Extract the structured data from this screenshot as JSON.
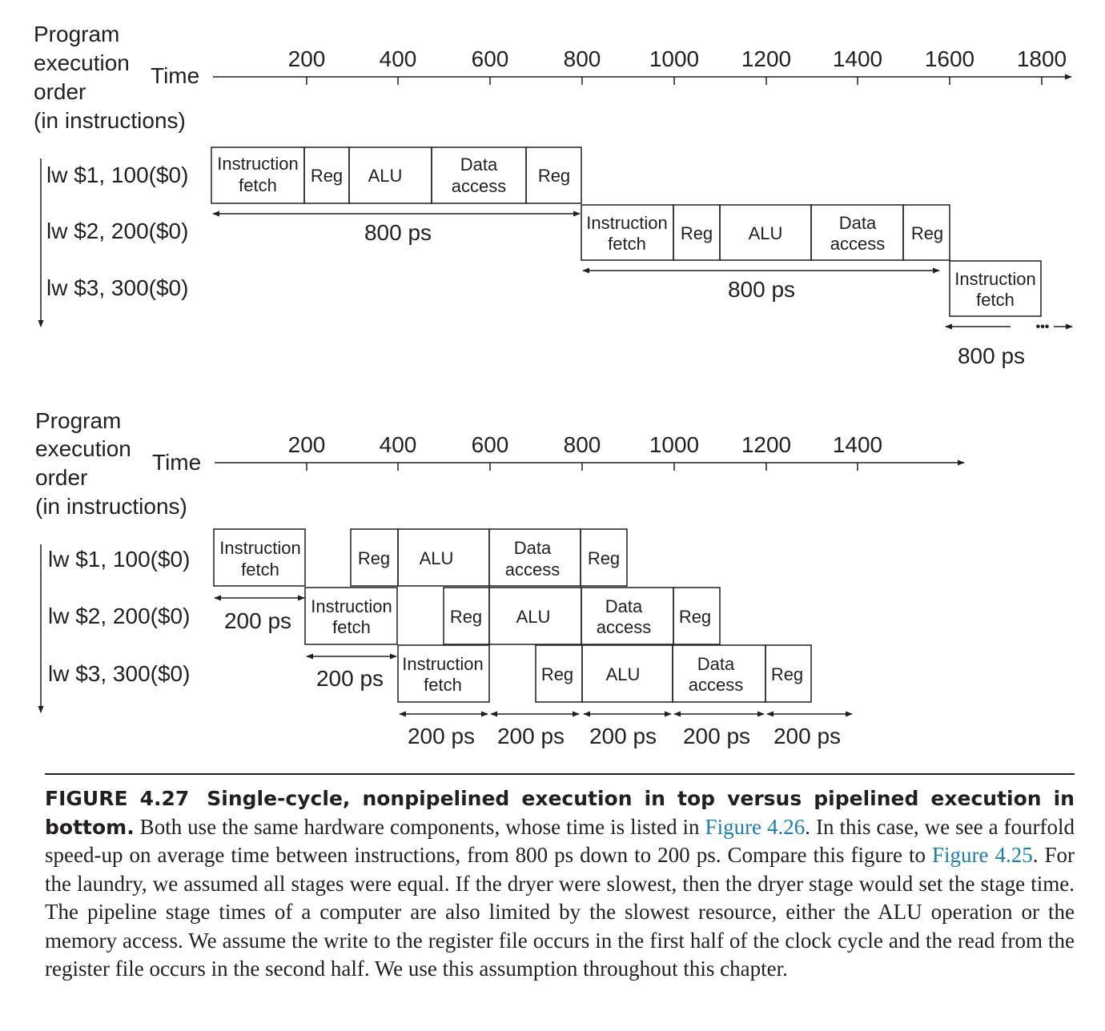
{
  "top": {
    "order_label": [
      "Program",
      "execution",
      "order",
      "(in instructions)"
    ],
    "time_label": "Time",
    "ticks": [
      "200",
      "400",
      "600",
      "800",
      "1000",
      "1200",
      "1400",
      "1600",
      "1800"
    ],
    "instructions": [
      "lw  $1, 100($0)",
      "lw  $2, 200($0)",
      "lw  $3, 300($0)"
    ],
    "stages": {
      "instruction_fetch": [
        "Instruction",
        "fetch"
      ],
      "reg": "Reg",
      "alu": "ALU",
      "data_access": [
        "Data",
        "access"
      ]
    },
    "period_labels": [
      "800 ps",
      "800 ps",
      "800 ps"
    ],
    "continuation": "•••"
  },
  "bottom": {
    "order_label": [
      "Program",
      "execution",
      "order",
      "(in instructions)"
    ],
    "time_label": "Time",
    "ticks": [
      "200",
      "400",
      "600",
      "800",
      "1000",
      "1200",
      "1400"
    ],
    "instructions": [
      "lw  $1, 100($0)",
      "lw  $2, 200($0)",
      "lw  $3, 300($0)"
    ],
    "stages": {
      "instruction_fetch": [
        "Instruction",
        "fetch"
      ],
      "reg": "Reg",
      "alu": "ALU",
      "data_access": [
        "Data",
        "access"
      ]
    },
    "fetch_period_labels": [
      "200 ps",
      "200 ps"
    ],
    "stage_period_labels": [
      "200 ps",
      "200 ps",
      "200 ps",
      "200 ps",
      "200 ps"
    ]
  },
  "caption": {
    "label": "FIGURE 4.27",
    "title": "Single-cycle, nonpipelined execution in top versus pipelined execution in bottom.",
    "text_1": " Both use the same hardware components, whose time is listed in ",
    "ref_1": "Figure 4.26",
    "text_2": ". In this case, we see a fourfold speed-up on average time between instructions, from 800 ps down to 200 ps. Compare this figure to ",
    "ref_2": "Figure 4.25",
    "text_3": ". For the laundry, we assumed all stages were equal. If the dryer were slowest, then the dryer stage would set the stage time. The pipeline stage times of a computer are also limited by the slowest resource, either the ALU operation or the memory access. We assume the write to the register file occurs in the first half of the clock cycle and the read from the register file occurs in the second half. We use this assumption throughout this chapter.",
    "colors": {
      "text": "#231f20",
      "link": "#1a7fae"
    }
  }
}
